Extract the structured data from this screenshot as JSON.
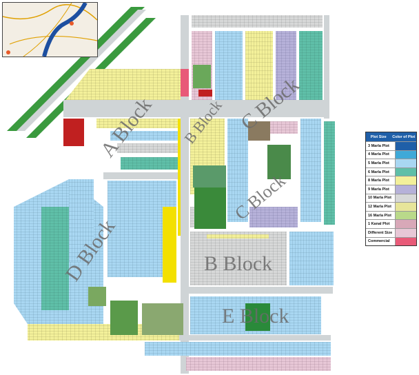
{
  "map": {
    "blocks": [
      "A Block",
      "B Block",
      "C Block",
      "C Block",
      "D Block",
      "B Block",
      "E Block"
    ],
    "colors": {
      "background": "#ffffff",
      "road": "#cfd4d6",
      "highway_green": "#3a9a3e",
      "water": "#1d4fa0"
    }
  },
  "legend": {
    "header_size": "Plot Size",
    "header_color": "Color of Plot",
    "items": [
      {
        "label": "3 Marla Plot",
        "color": "#1f5fa8"
      },
      {
        "label": "4 Marla Plot",
        "color": "#3fa9d8"
      },
      {
        "label": "5 Marla Plot",
        "color": "#a9d7f2"
      },
      {
        "label": "6 Marla Plot",
        "color": "#5fbfa8"
      },
      {
        "label": "8 Marla Plot",
        "color": "#f3f09a"
      },
      {
        "label": "9 Marla Plot",
        "color": "#b6b1d9"
      },
      {
        "label": "10 Marla Plot",
        "color": "#d7d8d8"
      },
      {
        "label": "12 Marla Plot",
        "color": "#e7e59a"
      },
      {
        "label": "16 Marla Plot",
        "color": "#b9d98a"
      },
      {
        "label": "1 Kanal Plot",
        "color": "#d8a8b8"
      },
      {
        "label": "Different Size",
        "color": "#e7c7d6"
      },
      {
        "label": "Commercial",
        "color": "#e85a78"
      }
    ]
  }
}
